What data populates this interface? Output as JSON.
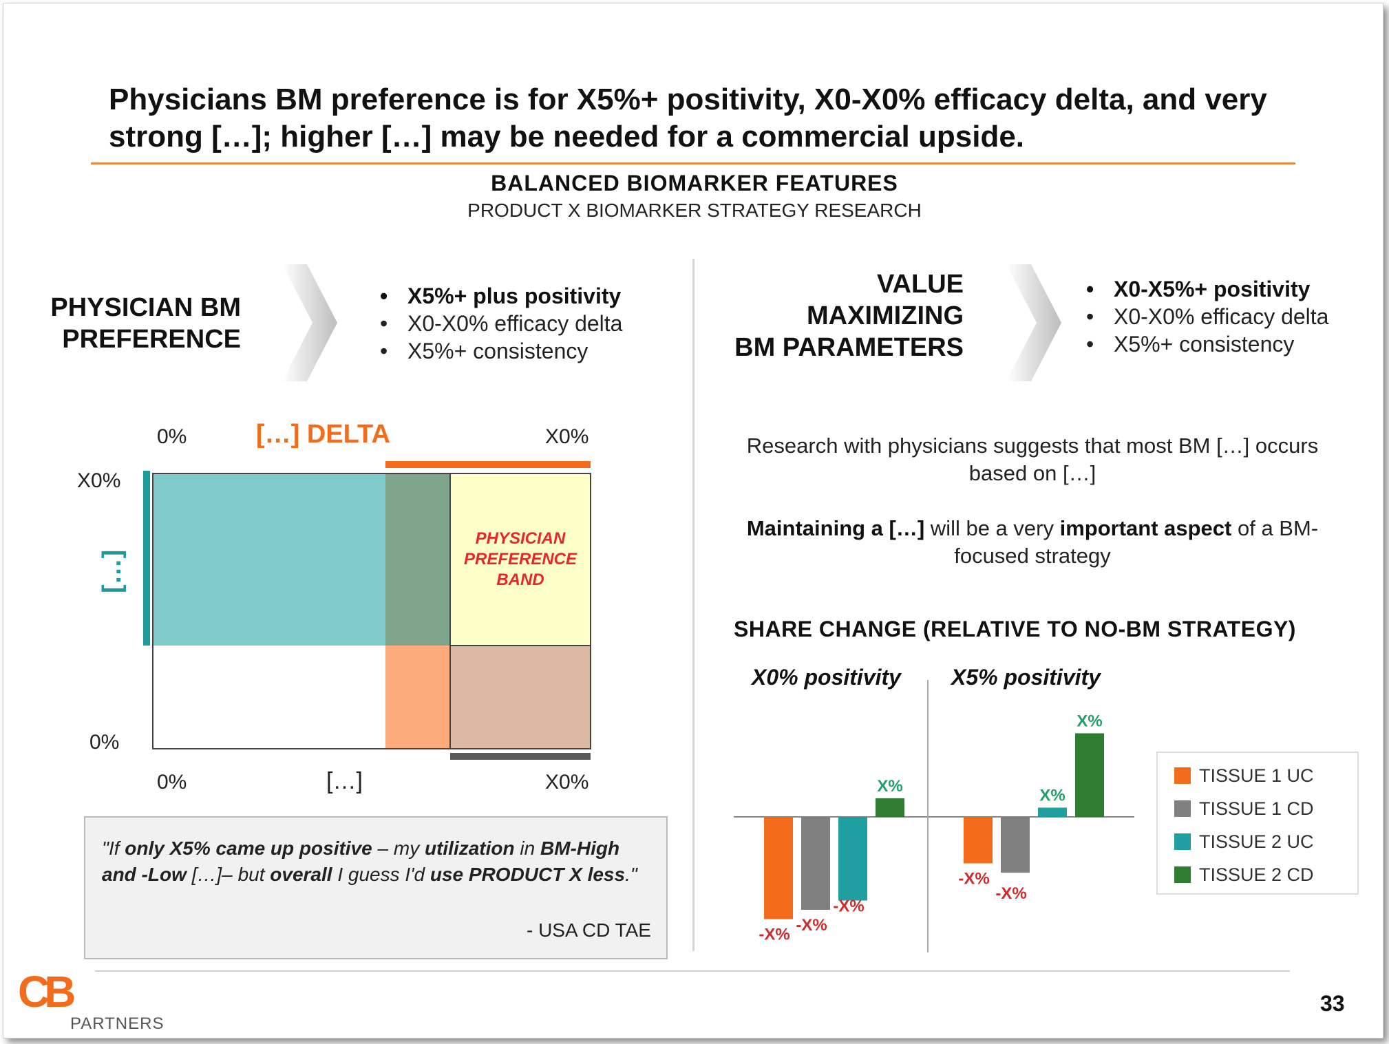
{
  "title": "Physicians BM preference is for X5%+ positivity, X0-X0% efficacy delta, and very strong […]; higher […] may be needed for a commercial upside.",
  "subtitle_main": "BALANCED  BIOMARKER  FEATURES",
  "subtitle_sub": "PRODUCT X BIOMARKER STRATEGY RESEARCH",
  "left_section": {
    "label_line1": "PHYSICIAN  BM",
    "label_line2": "PREFERENCE",
    "bullets": [
      "X5%+ plus positivity",
      "X0-X0% efficacy delta",
      "X5%+ consistency"
    ]
  },
  "right_section": {
    "label_line1": "VALUE",
    "label_line2": "MAXIMIZING",
    "label_line3": "BM PARAMETERS",
    "bullets": [
      "X0-X5%+ positivity",
      "X0-X0% efficacy delta",
      "X5%+ consistency"
    ]
  },
  "band_diagram": {
    "top_left_label": "0%",
    "top_right_label": "X0%",
    "delta_label": "[…] DELTA",
    "y_top_label": "X0%",
    "y_bottom_label": "0%",
    "y_axis_label": "[…]",
    "bottom_left_label": "0%",
    "bottom_mid_label": "[…]",
    "bottom_right_label": "X0%",
    "band_label_line1": "PHYSICIAN",
    "band_label_line2": "PREFERENCE",
    "band_label_line3": "BAND",
    "colors": {
      "teal": "#7fcbcb",
      "green_gray": "#7fa58c",
      "yellow": "#ffffc9",
      "orange": "#fbab7c",
      "tan": "#dcb9a2",
      "orange_bar": "#f26c1c",
      "teal_bar": "#1f9a9a",
      "dark_bar": "#595959"
    }
  },
  "quote": {
    "p1": "\"If ",
    "p2": "only X5% came up positive",
    "p3": " – my ",
    "p4": "utilization",
    "p5": " in ",
    "p6": "BM-High and -Low",
    "p7": " […]– but ",
    "p8": "overall",
    "p9": " I guess I'd ",
    "p10": "use PRODUCT X less",
    "p11": ".\"",
    "attribution": "- USA CD TAE"
  },
  "research_text": "Research with physicians suggests that most BM […] occurs based on […]",
  "maintain_text": {
    "b1": "Maintaining  a  […]",
    "t1": " will be a very ",
    "b2": "important aspect",
    "t2": " of a BM-focused strategy"
  },
  "chart_data": {
    "type": "bar",
    "title": "SHARE CHANGE (RELATIVE TO NO-BM STRATEGY)",
    "categories": [
      "X0% positivity",
      "X5% positivity"
    ],
    "series": [
      {
        "name": "TISSUE  1 UC",
        "color": "#f26c1c",
        "values": [
          -11,
          -5
        ],
        "labels": [
          "-X%",
          "-X%"
        ]
      },
      {
        "name": "TISSUE  1 CD",
        "color": "#808080",
        "values": [
          -10,
          -6
        ],
        "labels": [
          "-X%",
          "-X%"
        ]
      },
      {
        "name": "TISSUE  2 UC",
        "color": "#1f9f9f",
        "values": [
          -9,
          1
        ],
        "labels": [
          "-X%",
          "X%"
        ]
      },
      {
        "name": "TISSUE  2 CD",
        "color": "#2e7d32",
        "values": [
          2,
          9
        ],
        "labels": [
          "X%",
          "X%"
        ]
      }
    ],
    "ylim": [
      -12,
      10
    ],
    "legend": "right"
  },
  "logo": {
    "letters": "CB",
    "word": "PARTNERS",
    "color": "#f26c1c"
  },
  "page_number": "33"
}
